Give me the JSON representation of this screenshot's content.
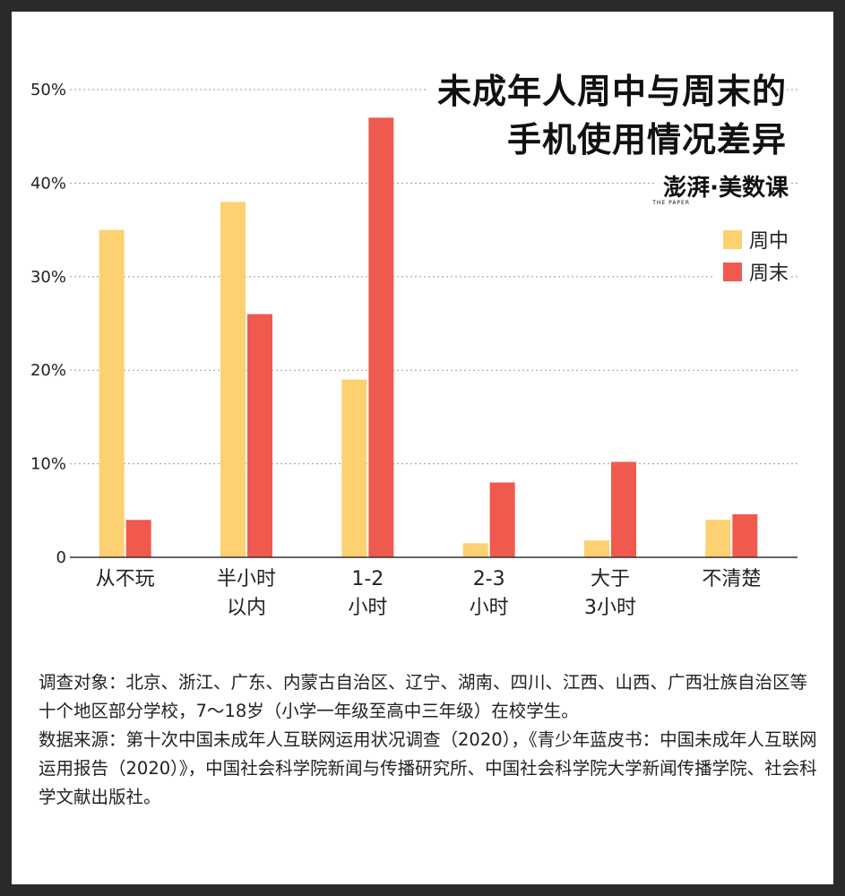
{
  "title_line1": "未成年人周中与周末的",
  "title_line2": "手机使用情况差异",
  "brand": {
    "name": "澎湃·美数课",
    "sub": "THE PAPER"
  },
  "chart_data": {
    "type": "bar",
    "categories": [
      [
        "从不玩"
      ],
      [
        "半小时",
        "以内"
      ],
      [
        "1-2",
        "小时"
      ],
      [
        "2-3",
        "小时"
      ],
      [
        "大于",
        "3小时"
      ],
      [
        "不清楚"
      ]
    ],
    "series": [
      {
        "name": "周中",
        "color": "#FDD072",
        "values": [
          35,
          38,
          19,
          1.5,
          1.8,
          4
        ]
      },
      {
        "name": "周末",
        "color": "#F05A4E",
        "values": [
          4,
          26,
          47,
          8,
          10.2,
          4.6
        ]
      }
    ],
    "yticks": [
      {
        "value": 0,
        "label": "0"
      },
      {
        "value": 10,
        "label": "10%"
      },
      {
        "value": 20,
        "label": "20%"
      },
      {
        "value": 30,
        "label": "30%"
      },
      {
        "value": 40,
        "label": "40%"
      },
      {
        "value": 50,
        "label": "50%"
      }
    ],
    "ylim": [
      0,
      50
    ],
    "grid": true,
    "legend_position": "top-right"
  },
  "notes": {
    "survey": "调查对象：北京、浙江、广东、内蒙古自治区、辽宁、湖南、四川、江西、山西、广西壮族自治区等十个地区部分学校，7～18岁（小学一年级至高中三年级）在校学生。",
    "source": "数据来源：第十次中国未成年人互联网运用状况调查（2020），《青少年蓝皮书：中国未成年人互联网运用报告（2020）》，中国社会科学院新闻与传播研究所、中国社会科学院大学新闻传播学院、社会科学文献出版社。"
  }
}
